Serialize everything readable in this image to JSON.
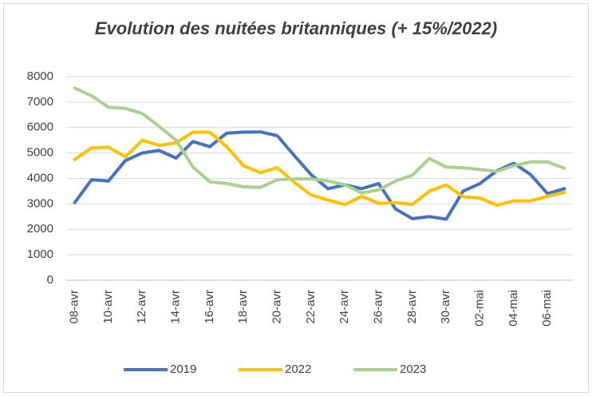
{
  "chart_data": {
    "type": "line",
    "title": "Evolution des nuitées britanniques (+ 15%/2022)",
    "categories": [
      "08-avr",
      null,
      "10-avr",
      null,
      "12-avr",
      null,
      "14-avr",
      null,
      "16-avr",
      null,
      "18-avr",
      null,
      "20-avr",
      null,
      "22-avr",
      null,
      "24-avr",
      null,
      "26-avr",
      null,
      "28-avr",
      null,
      "30-avr",
      null,
      "02-mai",
      null,
      "04-mai",
      null,
      "06-mai",
      null
    ],
    "series": [
      {
        "name": "2019",
        "color": "#4472c4",
        "values": [
          3050,
          3950,
          3900,
          4700,
          5000,
          5100,
          4800,
          5450,
          5250,
          5780,
          5820,
          5830,
          5680,
          4900,
          4150,
          3600,
          3750,
          3600,
          3800,
          2800,
          2420,
          2500,
          2400,
          3500,
          3800,
          4300,
          4600,
          4150,
          3400,
          3600
        ]
      },
      {
        "name": "2022",
        "color": "#ffc000",
        "values": [
          4750,
          5200,
          5230,
          4850,
          5500,
          5300,
          5400,
          5820,
          5820,
          5250,
          4500,
          4230,
          4420,
          3850,
          3350,
          3150,
          2970,
          3300,
          3020,
          3050,
          2980,
          3500,
          3750,
          3280,
          3230,
          2950,
          3120,
          3120,
          3300,
          3450
        ]
      },
      {
        "name": "2023",
        "color": "#a9d18e",
        "values": [
          7550,
          7250,
          6800,
          6750,
          6550,
          6050,
          5500,
          4450,
          3870,
          3800,
          3670,
          3650,
          3950,
          3980,
          3980,
          3900,
          3750,
          3430,
          3550,
          3900,
          4130,
          4780,
          4450,
          4420,
          4350,
          4280,
          4500,
          4650,
          4650,
          4400
        ]
      }
    ],
    "ylim": [
      0,
      8000
    ],
    "yticks": [
      0,
      1000,
      2000,
      3000,
      4000,
      5000,
      6000,
      7000,
      8000
    ],
    "grid": true,
    "legend": "bottom"
  }
}
